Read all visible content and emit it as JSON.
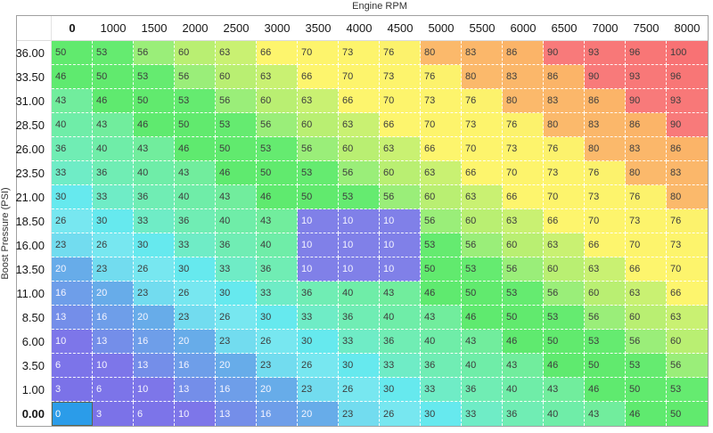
{
  "table": {
    "x_axis_label": "Engine RPM",
    "y_axis_label": "Boost Pressure (PSI)"
  },
  "chart_data": {
    "type": "heatmap",
    "title": "Engine RPM",
    "xlabel": "Engine RPM",
    "ylabel": "Boost Pressure (PSI)",
    "legend_position": "none",
    "grid": "dashed-white",
    "columns": [
      "0",
      "1000",
      "1500",
      "2000",
      "2500",
      "3000",
      "3500",
      "4000",
      "4500",
      "5000",
      "5500",
      "6000",
      "6500",
      "7000",
      "7500",
      "8000"
    ],
    "rows": [
      "36.00",
      "33.50",
      "31.00",
      "28.50",
      "26.00",
      "23.50",
      "21.00",
      "18.50",
      "16.00",
      "13.50",
      "11.00",
      "8.50",
      "6.00",
      "3.50",
      "1.00",
      "0.00"
    ],
    "values": [
      [
        50,
        53,
        56,
        60,
        63,
        66,
        70,
        73,
        76,
        80,
        83,
        86,
        90,
        93,
        96,
        100
      ],
      [
        46,
        50,
        53,
        56,
        60,
        63,
        66,
        70,
        73,
        76,
        80,
        83,
        86,
        90,
        93,
        96
      ],
      [
        43,
        46,
        50,
        53,
        56,
        60,
        63,
        66,
        70,
        73,
        76,
        80,
        83,
        86,
        90,
        93
      ],
      [
        40,
        43,
        46,
        50,
        53,
        56,
        60,
        63,
        66,
        70,
        73,
        76,
        80,
        83,
        86,
        90
      ],
      [
        36,
        40,
        43,
        46,
        50,
        53,
        56,
        60,
        63,
        66,
        70,
        73,
        76,
        80,
        83,
        86
      ],
      [
        33,
        36,
        40,
        43,
        46,
        50,
        53,
        56,
        60,
        63,
        66,
        70,
        73,
        76,
        80,
        83
      ],
      [
        30,
        33,
        36,
        40,
        43,
        46,
        50,
        53,
        56,
        60,
        63,
        66,
        70,
        73,
        76,
        80
      ],
      [
        26,
        30,
        33,
        36,
        40,
        43,
        10,
        10,
        10,
        56,
        60,
        63,
        66,
        70,
        73,
        76
      ],
      [
        23,
        26,
        30,
        33,
        36,
        40,
        10,
        10,
        10,
        53,
        56,
        60,
        63,
        66,
        70,
        73
      ],
      [
        20,
        23,
        26,
        30,
        33,
        36,
        10,
        10,
        10,
        50,
        53,
        56,
        60,
        63,
        66,
        70
      ],
      [
        16,
        20,
        23,
        26,
        30,
        33,
        36,
        40,
        43,
        46,
        50,
        53,
        56,
        60,
        63,
        66
      ],
      [
        13,
        16,
        20,
        23,
        26,
        30,
        33,
        36,
        40,
        43,
        46,
        50,
        53,
        56,
        60,
        63
      ],
      [
        10,
        13,
        16,
        20,
        23,
        26,
        30,
        33,
        36,
        40,
        43,
        46,
        50,
        53,
        56,
        60
      ],
      [
        6,
        10,
        13,
        16,
        20,
        23,
        26,
        30,
        33,
        36,
        40,
        43,
        46,
        50,
        53,
        56
      ],
      [
        3,
        6,
        10,
        13,
        16,
        20,
        23,
        26,
        30,
        33,
        36,
        40,
        43,
        46,
        50,
        53
      ],
      [
        0,
        3,
        6,
        10,
        13,
        16,
        20,
        23,
        26,
        30,
        33,
        36,
        40,
        43,
        46,
        50
      ]
    ],
    "selection": {
      "rows": [
        "18.50",
        "16.00",
        "13.50"
      ],
      "cols": [
        "3500",
        "4000",
        "4500"
      ],
      "row_indices": [
        7,
        8,
        9
      ],
      "col_indices": [
        6,
        7,
        8
      ],
      "value": 10,
      "bg": "#8080e8",
      "text": "#f2f2ff"
    },
    "cursor": {
      "row": "0.00",
      "col": "0",
      "row_index": 15,
      "col_index": 0,
      "bg": "#2b9ce9",
      "border": "#5a654f",
      "text": "#ffffff"
    },
    "light_text_max": 20,
    "text_dark": "#3d3d3d",
    "text_light": "#f4f4ff",
    "value_colors": {
      "0": "#7b6fe8",
      "3": "#7b72e8",
      "6": "#7c74e9",
      "10": "#7d76e9",
      "13": "#748ee9",
      "16": "#6e9ee9",
      "20": "#67ace9",
      "23": "#72dcef",
      "26": "#77e7f0",
      "30": "#66e9ee",
      "33": "#6fecc6",
      "36": "#70edb4",
      "40": "#6feda8",
      "43": "#71ed9d",
      "46": "#5fea6f",
      "50": "#61ea6e",
      "53": "#65eb70",
      "56": "#9aee79",
      "60": "#b9ef72",
      "63": "#c9f172",
      "66": "#fdf56d",
      "70": "#fdf46c",
      "73": "#fdf46c",
      "76": "#fcf26c",
      "80": "#fbb96b",
      "83": "#fbb76a",
      "86": "#fbb468",
      "90": "#f87a7a",
      "93": "#f87878",
      "96": "#f87676",
      "100": "#f87274"
    }
  }
}
